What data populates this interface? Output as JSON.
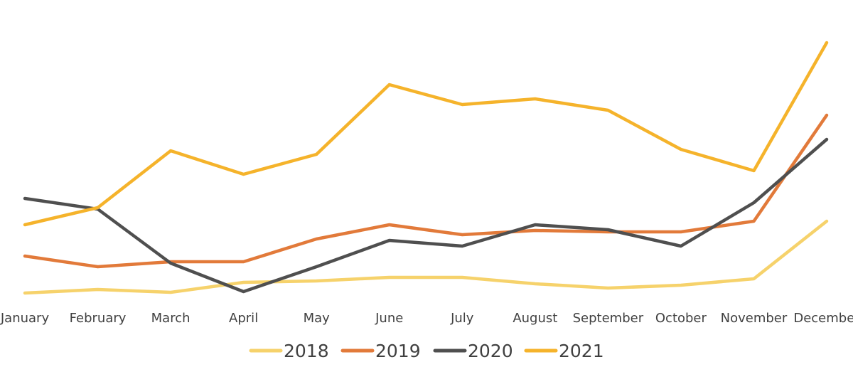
{
  "chart_data": {
    "type": "line",
    "title": "",
    "xlabel": "",
    "ylabel": "",
    "categories": [
      "January",
      "February",
      "March",
      "April",
      "May",
      "June",
      "July",
      "August",
      "September",
      "October",
      "November",
      "December"
    ],
    "ylim": [
      0,
      370
    ],
    "grid": false,
    "legend_placement": "bottom",
    "series": [
      {
        "name": "2018",
        "color": "#F6D26B",
        "values": [
          8,
          13,
          9,
          23,
          25,
          30,
          30,
          21,
          15,
          19,
          28,
          109
        ]
      },
      {
        "name": "2019",
        "color": "#E27A3A",
        "values": [
          60,
          45,
          52,
          52,
          84,
          104,
          90,
          96,
          94,
          94,
          109,
          258
        ]
      },
      {
        "name": "2020",
        "color": "#4F4F4F",
        "values": [
          141,
          126,
          50,
          10,
          45,
          82,
          74,
          104,
          97,
          74,
          135,
          224
        ]
      },
      {
        "name": "2021",
        "color": "#F5B32B",
        "values": [
          104,
          128,
          208,
          175,
          203,
          301,
          273,
          281,
          265,
          210,
          180,
          360
        ]
      }
    ]
  }
}
